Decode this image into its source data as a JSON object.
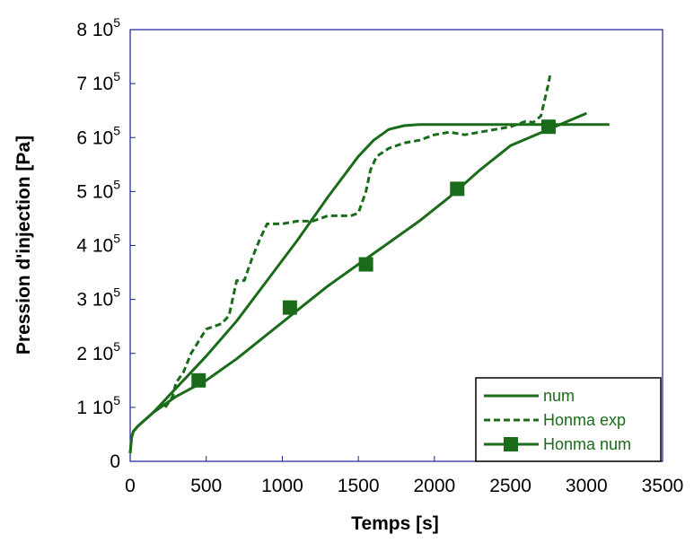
{
  "chart_data": {
    "type": "line",
    "xlabel": "Temps [s]",
    "ylabel": "Pression d'injection [Pa]",
    "xlim": [
      0,
      3500
    ],
    "ylim": [
      0,
      800000
    ],
    "x_ticks": [
      {
        "value": 0,
        "label": "0"
      },
      {
        "value": 500,
        "label": "500"
      },
      {
        "value": 1000,
        "label": "1000"
      },
      {
        "value": 1500,
        "label": "1500"
      },
      {
        "value": 2000,
        "label": "2000"
      },
      {
        "value": 2500,
        "label": "2500"
      },
      {
        "value": 3000,
        "label": "3000"
      },
      {
        "value": 3500,
        "label": "3500"
      }
    ],
    "y_ticks": [
      {
        "value": 0,
        "mantissa": "0",
        "exponent": ""
      },
      {
        "value": 100000,
        "mantissa": "1 10",
        "exponent": "5"
      },
      {
        "value": 200000,
        "mantissa": "2 10",
        "exponent": "5"
      },
      {
        "value": 300000,
        "mantissa": "3 10",
        "exponent": "5"
      },
      {
        "value": 400000,
        "mantissa": "4 10",
        "exponent": "5"
      },
      {
        "value": 500000,
        "mantissa": "5 10",
        "exponent": "5"
      },
      {
        "value": 600000,
        "mantissa": "6 10",
        "exponent": "5"
      },
      {
        "value": 700000,
        "mantissa": "7 10",
        "exponent": "5"
      },
      {
        "value": 800000,
        "mantissa": "8 10",
        "exponent": "5"
      }
    ],
    "grid": false,
    "legend_position": "bottom-right",
    "series": [
      {
        "name": "num",
        "style": "solid",
        "color": "#1a6b1a",
        "x": [
          0,
          5,
          10,
          20,
          50,
          150,
          300,
          500,
          700,
          900,
          1100,
          1300,
          1500,
          1600,
          1700,
          1800,
          1900,
          2000,
          2500,
          3000,
          3150
        ],
        "y": [
          15000,
          30000,
          45000,
          55000,
          65000,
          90000,
          135000,
          195000,
          260000,
          335000,
          410000,
          490000,
          565000,
          595000,
          615000,
          622000,
          624000,
          624000,
          624000,
          624000,
          624000
        ]
      },
      {
        "name": "Honma exp",
        "style": "dashed",
        "color": "#1a6b1a",
        "x": [
          230,
          280,
          300,
          350,
          400,
          500,
          600,
          650,
          700,
          750,
          800,
          850,
          900,
          1000,
          1100,
          1200,
          1300,
          1400,
          1450,
          1500,
          1550,
          1580,
          1620,
          1700,
          1800,
          1900,
          2000,
          2100,
          2200,
          2300,
          2400,
          2500,
          2550,
          2600,
          2650,
          2700,
          2750,
          2760
        ],
        "y": [
          100000,
          120000,
          145000,
          165000,
          200000,
          245000,
          255000,
          270000,
          335000,
          335000,
          375000,
          410000,
          440000,
          440000,
          445000,
          445000,
          455000,
          455000,
          455000,
          460000,
          500000,
          540000,
          565000,
          580000,
          590000,
          595000,
          605000,
          610000,
          605000,
          610000,
          615000,
          620000,
          625000,
          630000,
          628000,
          640000,
          700000,
          715000
        ]
      },
      {
        "name": "Honma num",
        "style": "solid-square-markers",
        "color": "#1a6b1a",
        "x": [
          0,
          5,
          10,
          20,
          50,
          150,
          300,
          500,
          700,
          900,
          1100,
          1300,
          1500,
          1700,
          1900,
          2100,
          2300,
          2500,
          2750,
          3000
        ],
        "y": [
          15000,
          30000,
          45000,
          55000,
          65000,
          90000,
          120000,
          150000,
          190000,
          235000,
          280000,
          325000,
          365000,
          405000,
          445000,
          490000,
          540000,
          585000,
          615000,
          645000
        ],
        "markers_x": [
          450,
          1050,
          1550,
          2150,
          2750
        ],
        "markers_y": [
          150000,
          285000,
          365000,
          505000,
          620000
        ]
      }
    ]
  }
}
